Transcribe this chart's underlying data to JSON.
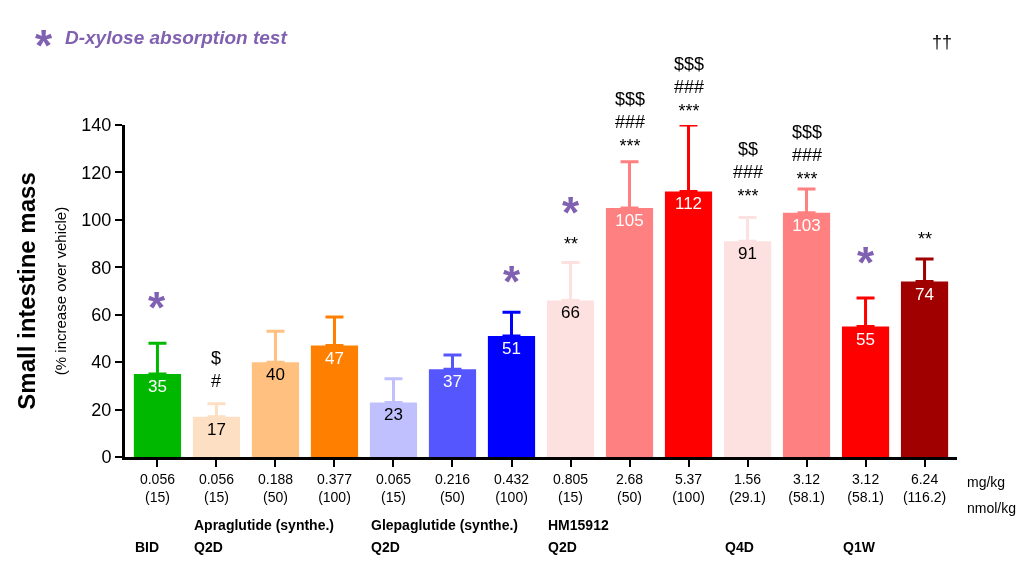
{
  "chart_data": {
    "type": "bar",
    "ylabel": "Small intestine mass\n(% increase over vehicle)",
    "categories": [
      "0.056\n(15)",
      "0.056\n(15)",
      "0.188\n(50)",
      "0.377\n(100)",
      "0.065\n(15)",
      "0.216\n(50)",
      "0.432\n(100)",
      "0.805\n(15)",
      "2.68\n(50)",
      "5.37\n(100)",
      "1.56\n(29.1)",
      "3.12\n(58.1)",
      "3.12\n(58.1)",
      "6.24\n(116.2)"
    ],
    "series": [
      {
        "values": [
          35,
          17,
          40,
          47,
          23,
          37,
          51,
          66,
          105,
          112,
          91,
          103,
          55,
          74
        ],
        "colors": [
          "#00b800",
          "#fde0c4",
          "#ffc080",
          "#ff8000",
          "#c0c0ff",
          "#5656ff",
          "#0000ff",
          "#fde0e0",
          "#ff8080",
          "#ff0000",
          "#fde0e0",
          "#ff8080",
          "#ff0000",
          "#a00000"
        ],
        "errors": [
          [
            35,
            48
          ],
          [
            17,
            22.5
          ],
          [
            40,
            53
          ],
          [
            47,
            59
          ],
          [
            23,
            33
          ],
          [
            37,
            43
          ],
          [
            51,
            61
          ],
          [
            66,
            82
          ],
          [
            105,
            124.5
          ],
          [
            112,
            140
          ],
          [
            91,
            101
          ],
          [
            103,
            113
          ],
          [
            55,
            67
          ],
          [
            74,
            83.5
          ]
        ]
      }
    ],
    "data_labels": true,
    "ylim": [
      0,
      140
    ],
    "yticks": [
      0,
      20,
      40,
      60,
      80,
      100,
      120,
      140
    ],
    "grid": false,
    "annotations": [
      "*",
      "$\n#",
      "*",
      "*",
      "**",
      "$$$\n###\n***",
      "$$$\n###\n***",
      "$$\n###\n***",
      "$$$\n###\n***",
      "*",
      "**",
      "††",
      "*",
      "D-xylose absorption test",
      "mg/kg",
      "nmol/kg",
      "BID",
      "Apraglutide (synthe.)",
      "Q2D",
      "Glepaglutide (synthe.)",
      "Q2D",
      "HM15912",
      "Q2D",
      "Q4D",
      "Q1W"
    ]
  }
}
